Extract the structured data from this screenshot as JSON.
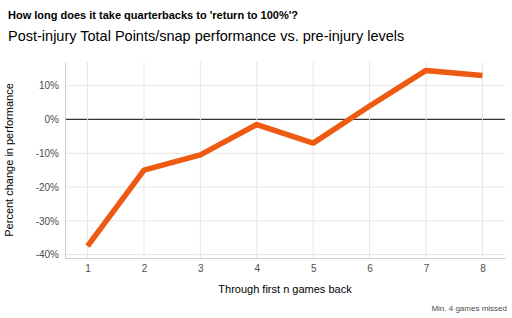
{
  "chart_data": {
    "type": "line",
    "title": "How long does it take quarterbacks to 'return to 100%'?",
    "subtitle": "Post-injury Total Points/snap performance vs. pre-injury levels",
    "x_label": "Through first n games back",
    "y_label": "Percent change in performance",
    "caption": "Min. 4 games missed",
    "x": [
      1,
      2,
      3,
      4,
      5,
      6,
      7,
      8
    ],
    "values": [
      -37.5,
      -15,
      -10.5,
      -1.5,
      -7,
      4,
      14.5,
      13
    ],
    "color": "#ee5a12",
    "xlim": [
      0.6,
      8.4
    ],
    "xticks": [
      1,
      2,
      3,
      4,
      5,
      6,
      7,
      8
    ],
    "ylim": [
      -41,
      17
    ],
    "yticks": [
      {
        "value": -40,
        "label": "-40%"
      },
      {
        "value": -30,
        "label": "-30%"
      },
      {
        "value": -20,
        "label": "-20%"
      },
      {
        "value": -10,
        "label": "-10%"
      },
      {
        "value": 0,
        "label": "0%"
      },
      {
        "value": 10,
        "label": "10%"
      }
    ],
    "grid": true
  }
}
